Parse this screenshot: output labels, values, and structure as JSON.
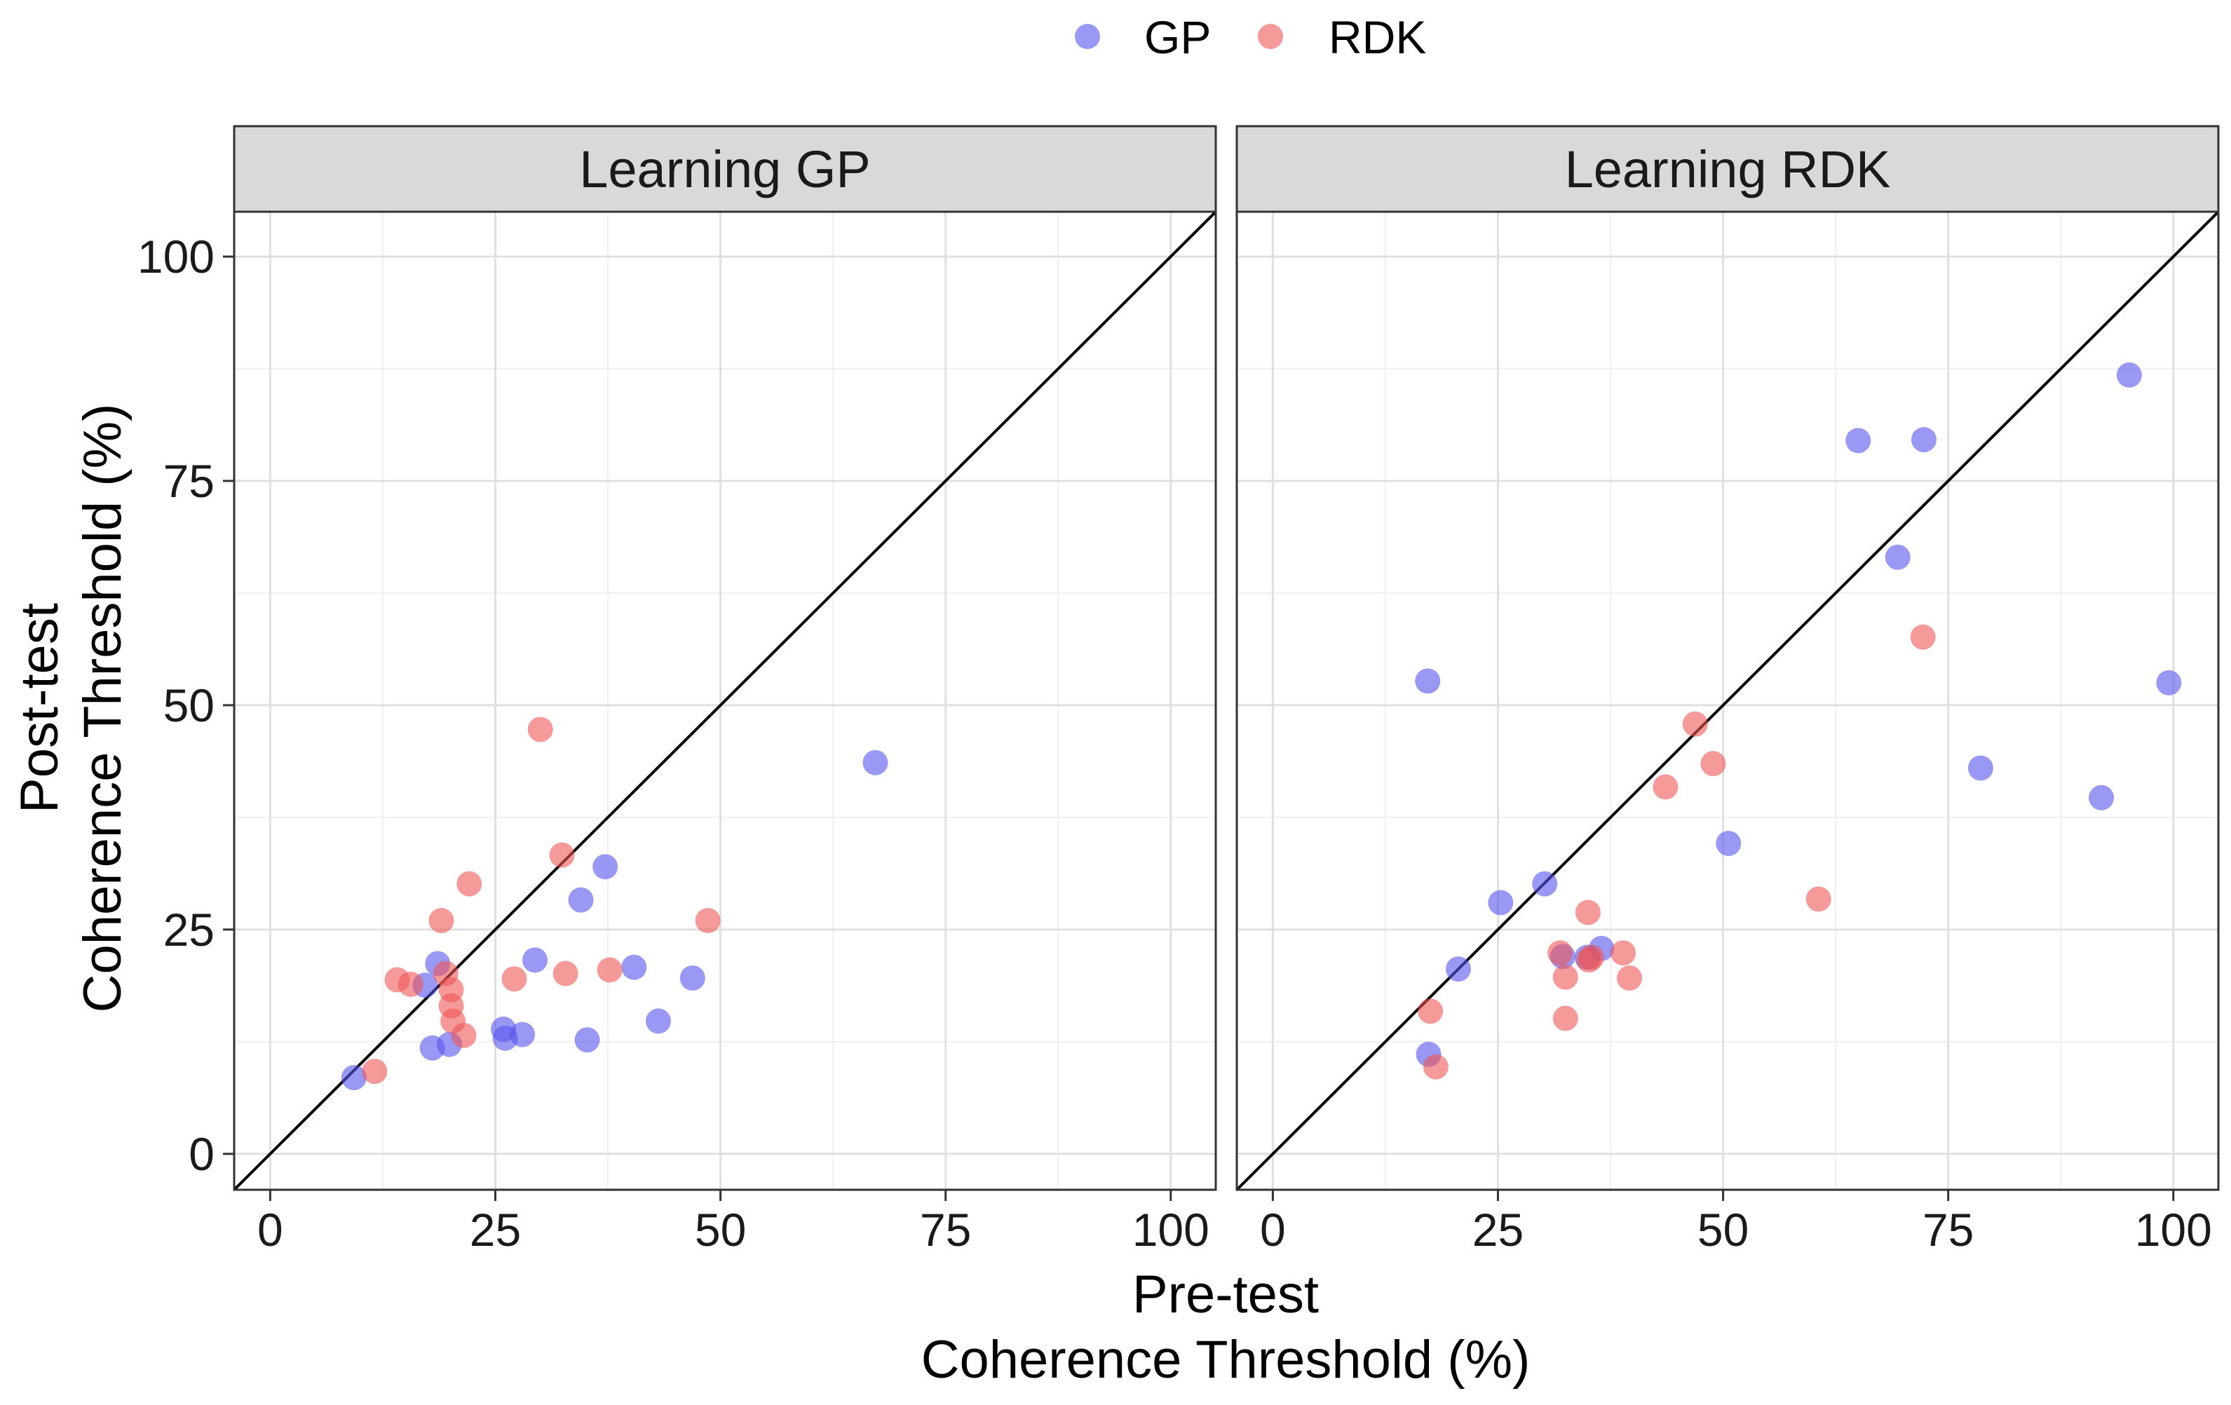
{
  "chart_data": {
    "type": "scatter",
    "xlabel_lines": [
      "Pre-test",
      "Coherence Threshold (%)"
    ],
    "ylabel_lines": [
      "Post-test",
      "Coherence Threshold (%)"
    ],
    "xlim": [
      -4,
      105
    ],
    "ylim": [
      -4,
      105
    ],
    "ticks": [
      0,
      25,
      50,
      75,
      100
    ],
    "tick_labels": [
      "0",
      "25",
      "50",
      "75",
      "100"
    ],
    "reference_line": "identity (y = x)",
    "legend": {
      "position": "top",
      "entries": [
        {
          "name": "GP",
          "color": "#5555ee"
        },
        {
          "name": "RDK",
          "color": "#ee5555"
        }
      ]
    },
    "panels": [
      {
        "title": "Learning GP",
        "series": [
          {
            "name": "GP",
            "color": "#5555ee",
            "points": [
              [
                9.3,
                8.5
              ],
              [
                17.2,
                18.8
              ],
              [
                18.6,
                21.2
              ],
              [
                18.0,
                11.8
              ],
              [
                19.9,
                12.2
              ],
              [
                25.9,
                13.9
              ],
              [
                26.1,
                12.9
              ],
              [
                28.0,
                13.3
              ],
              [
                29.4,
                21.6
              ],
              [
                34.5,
                28.3
              ],
              [
                35.2,
                12.7
              ],
              [
                37.2,
                32.0
              ],
              [
                40.4,
                20.8
              ],
              [
                43.1,
                14.8
              ],
              [
                46.9,
                19.6
              ],
              [
                67.2,
                43.6
              ]
            ]
          },
          {
            "name": "RDK",
            "color": "#ee5555",
            "points": [
              [
                11.6,
                9.2
              ],
              [
                14.1,
                19.4
              ],
              [
                15.6,
                18.9
              ],
              [
                19.0,
                26.0
              ],
              [
                19.5,
                20.1
              ],
              [
                20.1,
                18.3
              ],
              [
                20.1,
                16.5
              ],
              [
                20.3,
                14.8
              ],
              [
                21.5,
                13.2
              ],
              [
                22.1,
                30.1
              ],
              [
                27.1,
                19.5
              ],
              [
                30.0,
                47.3
              ],
              [
                32.4,
                33.3
              ],
              [
                32.8,
                20.1
              ],
              [
                37.7,
                20.5
              ],
              [
                48.6,
                26.0
              ]
            ]
          }
        ]
      },
      {
        "title": "Learning RDK",
        "series": [
          {
            "name": "GP",
            "color": "#5555ee",
            "points": [
              [
                17.2,
                52.7
              ],
              [
                17.3,
                11.1
              ],
              [
                20.6,
                20.6
              ],
              [
                25.3,
                28.0
              ],
              [
                30.2,
                30.1
              ],
              [
                32.2,
                22.0
              ],
              [
                34.9,
                21.9
              ],
              [
                36.5,
                22.9
              ],
              [
                50.6,
                34.6
              ],
              [
                65.0,
                79.5
              ],
              [
                69.4,
                66.5
              ],
              [
                72.3,
                79.6
              ],
              [
                78.6,
                43.0
              ],
              [
                92.0,
                39.7
              ],
              [
                95.1,
                86.8
              ],
              [
                99.5,
                52.5
              ]
            ]
          },
          {
            "name": "RDK",
            "color": "#ee5555",
            "points": [
              [
                17.5,
                15.9
              ],
              [
                18.1,
                9.7
              ],
              [
                31.9,
                22.4
              ],
              [
                32.5,
                15.1
              ],
              [
                32.5,
                19.7
              ],
              [
                35.0,
                26.9
              ],
              [
                35.1,
                21.6
              ],
              [
                35.4,
                21.9
              ],
              [
                38.9,
                22.4
              ],
              [
                39.6,
                19.6
              ],
              [
                43.6,
                40.9
              ],
              [
                46.9,
                47.9
              ],
              [
                48.9,
                43.5
              ],
              [
                60.6,
                28.4
              ],
              [
                72.2,
                57.6
              ]
            ]
          }
        ]
      }
    ]
  }
}
